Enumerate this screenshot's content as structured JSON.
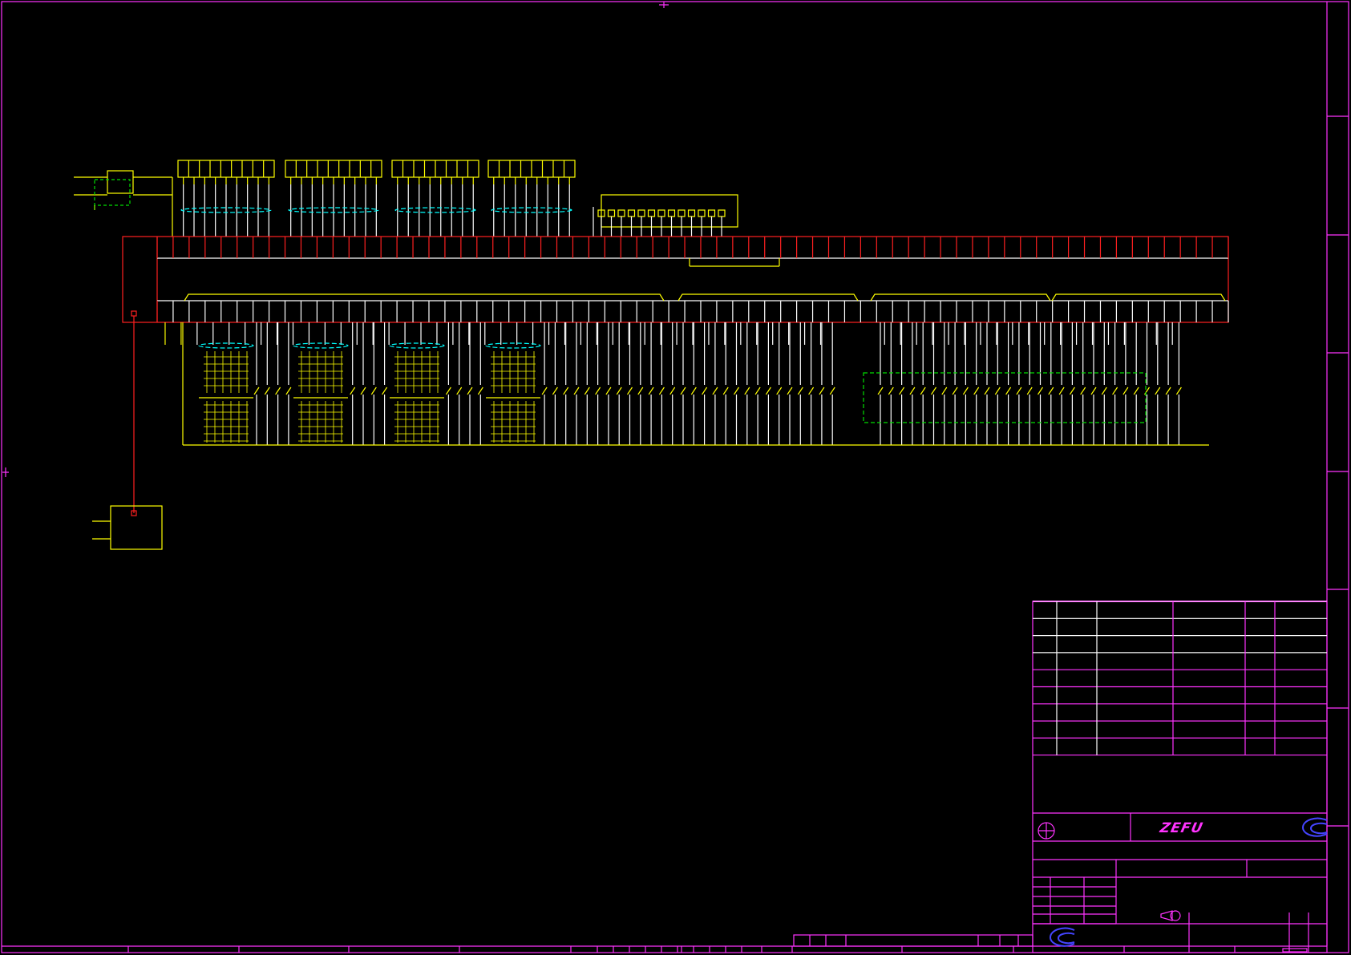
{
  "drawing": {
    "logo_text": "ZEFU"
  },
  "colors": {
    "background": "#000000",
    "frame": "#ff33ff",
    "wire": "#ffff00",
    "bus": "#ff2020",
    "cable": "#00ffff",
    "ground_box": "#00dd00",
    "white_wire": "#ffffff"
  },
  "structure": {
    "top_connector_groups": 4,
    "pins_per_top_group": [
      9,
      9,
      8,
      8
    ],
    "terminal_count_top": 67,
    "terminal_count_bottom": 67,
    "title_block_rows": 9
  }
}
